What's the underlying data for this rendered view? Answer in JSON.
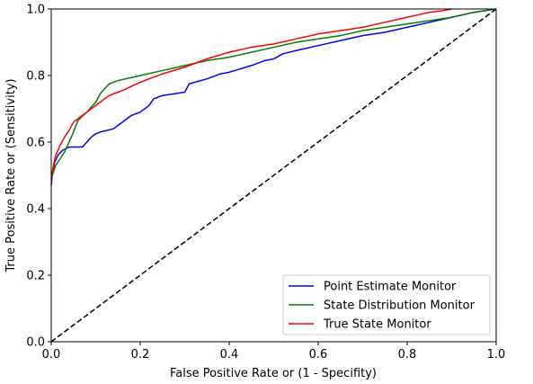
{
  "chart_data": {
    "type": "line",
    "title": "",
    "xlabel": "False Positive Rate or (1 - Specifity)",
    "ylabel": "True Positive Rate or (Sensitivity)",
    "xlim": [
      0,
      1
    ],
    "ylim": [
      0,
      1
    ],
    "xticks": [
      "0.0",
      "0.2",
      "0.4",
      "0.6",
      "0.8",
      "1.0"
    ],
    "yticks": [
      "0.0",
      "0.2",
      "0.4",
      "0.6",
      "0.8",
      "1.0"
    ],
    "grid": false,
    "legend_position": "lower-right",
    "reference_line": {
      "style": "dashed",
      "color": "#000000",
      "x": [
        0,
        1
      ],
      "y": [
        0,
        1
      ]
    },
    "series": [
      {
        "name": "Point Estimate Monitor",
        "color": "#0000ff",
        "x": [
          0,
          0.003,
          0.008,
          0.015,
          0.025,
          0.04,
          0.07,
          0.08,
          0.09,
          0.1,
          0.11,
          0.14,
          0.15,
          0.18,
          0.2,
          0.22,
          0.23,
          0.25,
          0.3,
          0.31,
          0.35,
          0.38,
          0.4,
          0.45,
          0.48,
          0.5,
          0.52,
          0.55,
          0.6,
          0.65,
          0.7,
          0.75,
          0.8,
          0.85,
          0.9,
          0.95,
          1.0
        ],
        "y": [
          0.47,
          0.51,
          0.54,
          0.56,
          0.575,
          0.585,
          0.585,
          0.6,
          0.615,
          0.625,
          0.63,
          0.64,
          0.65,
          0.68,
          0.69,
          0.71,
          0.73,
          0.74,
          0.75,
          0.775,
          0.79,
          0.805,
          0.81,
          0.83,
          0.845,
          0.85,
          0.865,
          0.875,
          0.89,
          0.905,
          0.92,
          0.93,
          0.945,
          0.96,
          0.975,
          0.99,
          1.0
        ]
      },
      {
        "name": "State Distribution Monitor",
        "color": "#008000",
        "x": [
          0,
          0.005,
          0.01,
          0.02,
          0.03,
          0.04,
          0.05,
          0.06,
          0.08,
          0.1,
          0.11,
          0.12,
          0.13,
          0.15,
          0.2,
          0.25,
          0.3,
          0.35,
          0.4,
          0.45,
          0.5,
          0.55,
          0.6,
          0.65,
          0.7,
          0.8,
          0.9,
          0.95,
          1.0
        ],
        "y": [
          0.49,
          0.51,
          0.53,
          0.55,
          0.57,
          0.6,
          0.63,
          0.665,
          0.69,
          0.72,
          0.745,
          0.76,
          0.775,
          0.785,
          0.8,
          0.815,
          0.83,
          0.845,
          0.855,
          0.87,
          0.885,
          0.9,
          0.91,
          0.92,
          0.935,
          0.955,
          0.975,
          0.99,
          1.0
        ]
      },
      {
        "name": "True State Monitor",
        "color": "#ff0000",
        "x": [
          0,
          0.005,
          0.01,
          0.02,
          0.03,
          0.04,
          0.05,
          0.07,
          0.09,
          0.11,
          0.13,
          0.16,
          0.2,
          0.25,
          0.3,
          0.35,
          0.4,
          0.45,
          0.5,
          0.55,
          0.6,
          0.65,
          0.7,
          0.75,
          0.8,
          0.85,
          0.88,
          0.9
        ],
        "y": [
          0.49,
          0.53,
          0.56,
          0.59,
          0.615,
          0.635,
          0.66,
          0.68,
          0.7,
          0.72,
          0.74,
          0.755,
          0.78,
          0.805,
          0.825,
          0.85,
          0.87,
          0.885,
          0.895,
          0.91,
          0.925,
          0.935,
          0.945,
          0.96,
          0.975,
          0.99,
          0.995,
          1.0
        ]
      }
    ]
  }
}
